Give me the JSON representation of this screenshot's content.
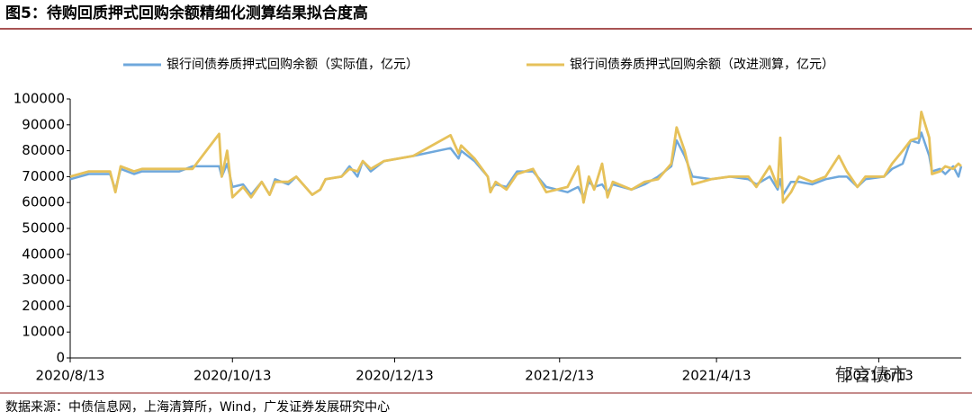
{
  "title": "图5：待购回质押式回购余额精细化测算结果拟合度高",
  "source": "数据来源：中债信息网，上海清算所，Wind，广发证券发展研究中心",
  "watermark": "郁言债市",
  "chart_data": {
    "type": "line",
    "x": [
      "2020/8/13",
      "2020/8/20",
      "2020/8/28",
      "2020/8/30",
      "2020/9/1",
      "2020/9/6",
      "2020/9/9",
      "2020/9/23",
      "2020/9/28",
      "2020/10/8",
      "2020/10/9",
      "2020/10/11",
      "2020/10/13",
      "2020/10/17",
      "2020/10/20",
      "2020/10/24",
      "2020/10/27",
      "2020/10/29",
      "2020/11/3",
      "2020/11/6",
      "2020/11/12",
      "2020/11/15",
      "2020/11/17",
      "2020/11/23",
      "2020/11/26",
      "2020/11/29",
      "2020/12/1",
      "2020/12/4",
      "2020/12/9",
      "2020/12/20",
      "2021/1/3",
      "2021/1/6",
      "2021/1/7",
      "2021/1/12",
      "2021/1/17",
      "2021/1/18",
      "2021/1/20",
      "2021/1/24",
      "2021/1/28",
      "2021/2/3",
      "2021/2/8",
      "2021/2/16",
      "2021/2/20",
      "2021/2/22",
      "2021/2/24",
      "2021/2/26",
      "2021/3/1",
      "2021/3/3",
      "2021/3/5",
      "2021/3/12",
      "2021/3/17",
      "2021/3/22",
      "2021/3/27",
      "2021/3/29",
      "2021/4/1",
      "2021/4/4",
      "2021/4/11",
      "2021/4/18",
      "2021/4/25",
      "2021/4/28",
      "2021/5/3",
      "2021/5/6",
      "2021/5/7",
      "2021/5/8",
      "2021/5/11",
      "2021/5/14",
      "2021/5/19",
      "2021/5/24",
      "2021/5/29",
      "2021/6/1",
      "2021/6/5",
      "2021/6/8",
      "2021/6/15",
      "2021/6/18",
      "2021/6/22",
      "2021/6/25",
      "2021/6/28",
      "2021/6/29",
      "2021/7/2",
      "2021/7/3",
      "2021/7/6",
      "2021/7/8",
      "2021/7/11",
      "2021/7/13",
      "2021/7/14"
    ],
    "series": [
      {
        "name": "银行间债券质押式回购余额（实际值，亿元）",
        "color": "#6fa8dc",
        "values": [
          69000,
          71000,
          71000,
          65000,
          73000,
          71000,
          72000,
          72000,
          74000,
          74000,
          70000,
          75000,
          66000,
          67000,
          63000,
          68000,
          63000,
          69000,
          67000,
          70000,
          63000,
          65000,
          69000,
          70000,
          74000,
          70000,
          76000,
          72000,
          76000,
          78000,
          81000,
          77000,
          80000,
          76000,
          70000,
          65000,
          67000,
          66000,
          72000,
          72000,
          66000,
          64000,
          66000,
          62000,
          68000,
          66000,
          67000,
          64000,
          67000,
          65000,
          67000,
          70000,
          74000,
          84000,
          78000,
          70000,
          69000,
          70000,
          69000,
          67000,
          70000,
          65000,
          69000,
          63000,
          68000,
          68000,
          67000,
          69000,
          70000,
          70000,
          66000,
          69000,
          70000,
          73000,
          75000,
          84000,
          83000,
          87000,
          78000,
          72000,
          73000,
          71000,
          74000,
          70000,
          74000
        ]
      },
      {
        "name": "银行间债券质押式回购余额（改进测算，亿元）",
        "color": "#e6c15a",
        "values": [
          70000,
          72000,
          72000,
          64000,
          74000,
          72000,
          73000,
          73000,
          73000,
          86500,
          70000,
          80000,
          62000,
          66000,
          62000,
          68000,
          63000,
          68000,
          68000,
          70000,
          63000,
          65000,
          69000,
          70000,
          73000,
          72000,
          76000,
          73000,
          76000,
          78000,
          86000,
          79000,
          82000,
          77000,
          70000,
          64000,
          68000,
          65000,
          71000,
          73000,
          64000,
          66000,
          74000,
          60000,
          70000,
          65000,
          75000,
          62000,
          68000,
          65000,
          68000,
          69000,
          75000,
          89000,
          80000,
          67000,
          69000,
          70000,
          70000,
          66000,
          74000,
          66000,
          85000,
          60000,
          64000,
          70000,
          68000,
          70000,
          78000,
          72000,
          66000,
          70000,
          70000,
          75000,
          80000,
          84000,
          85000,
          95000,
          85000,
          71000,
          72000,
          74000,
          73000,
          75000,
          74000
        ]
      }
    ],
    "xlim": [
      "2020/8/13",
      "2021/7/14"
    ],
    "xticks": [
      "2020/8/13",
      "2020/10/13",
      "2020/12/13",
      "2021/2/13",
      "2021/4/13",
      "2021/6/13"
    ],
    "ylim": [
      0,
      100000
    ],
    "yticks": [
      0,
      10000,
      20000,
      30000,
      40000,
      50000,
      60000,
      70000,
      80000,
      90000,
      100000
    ]
  }
}
